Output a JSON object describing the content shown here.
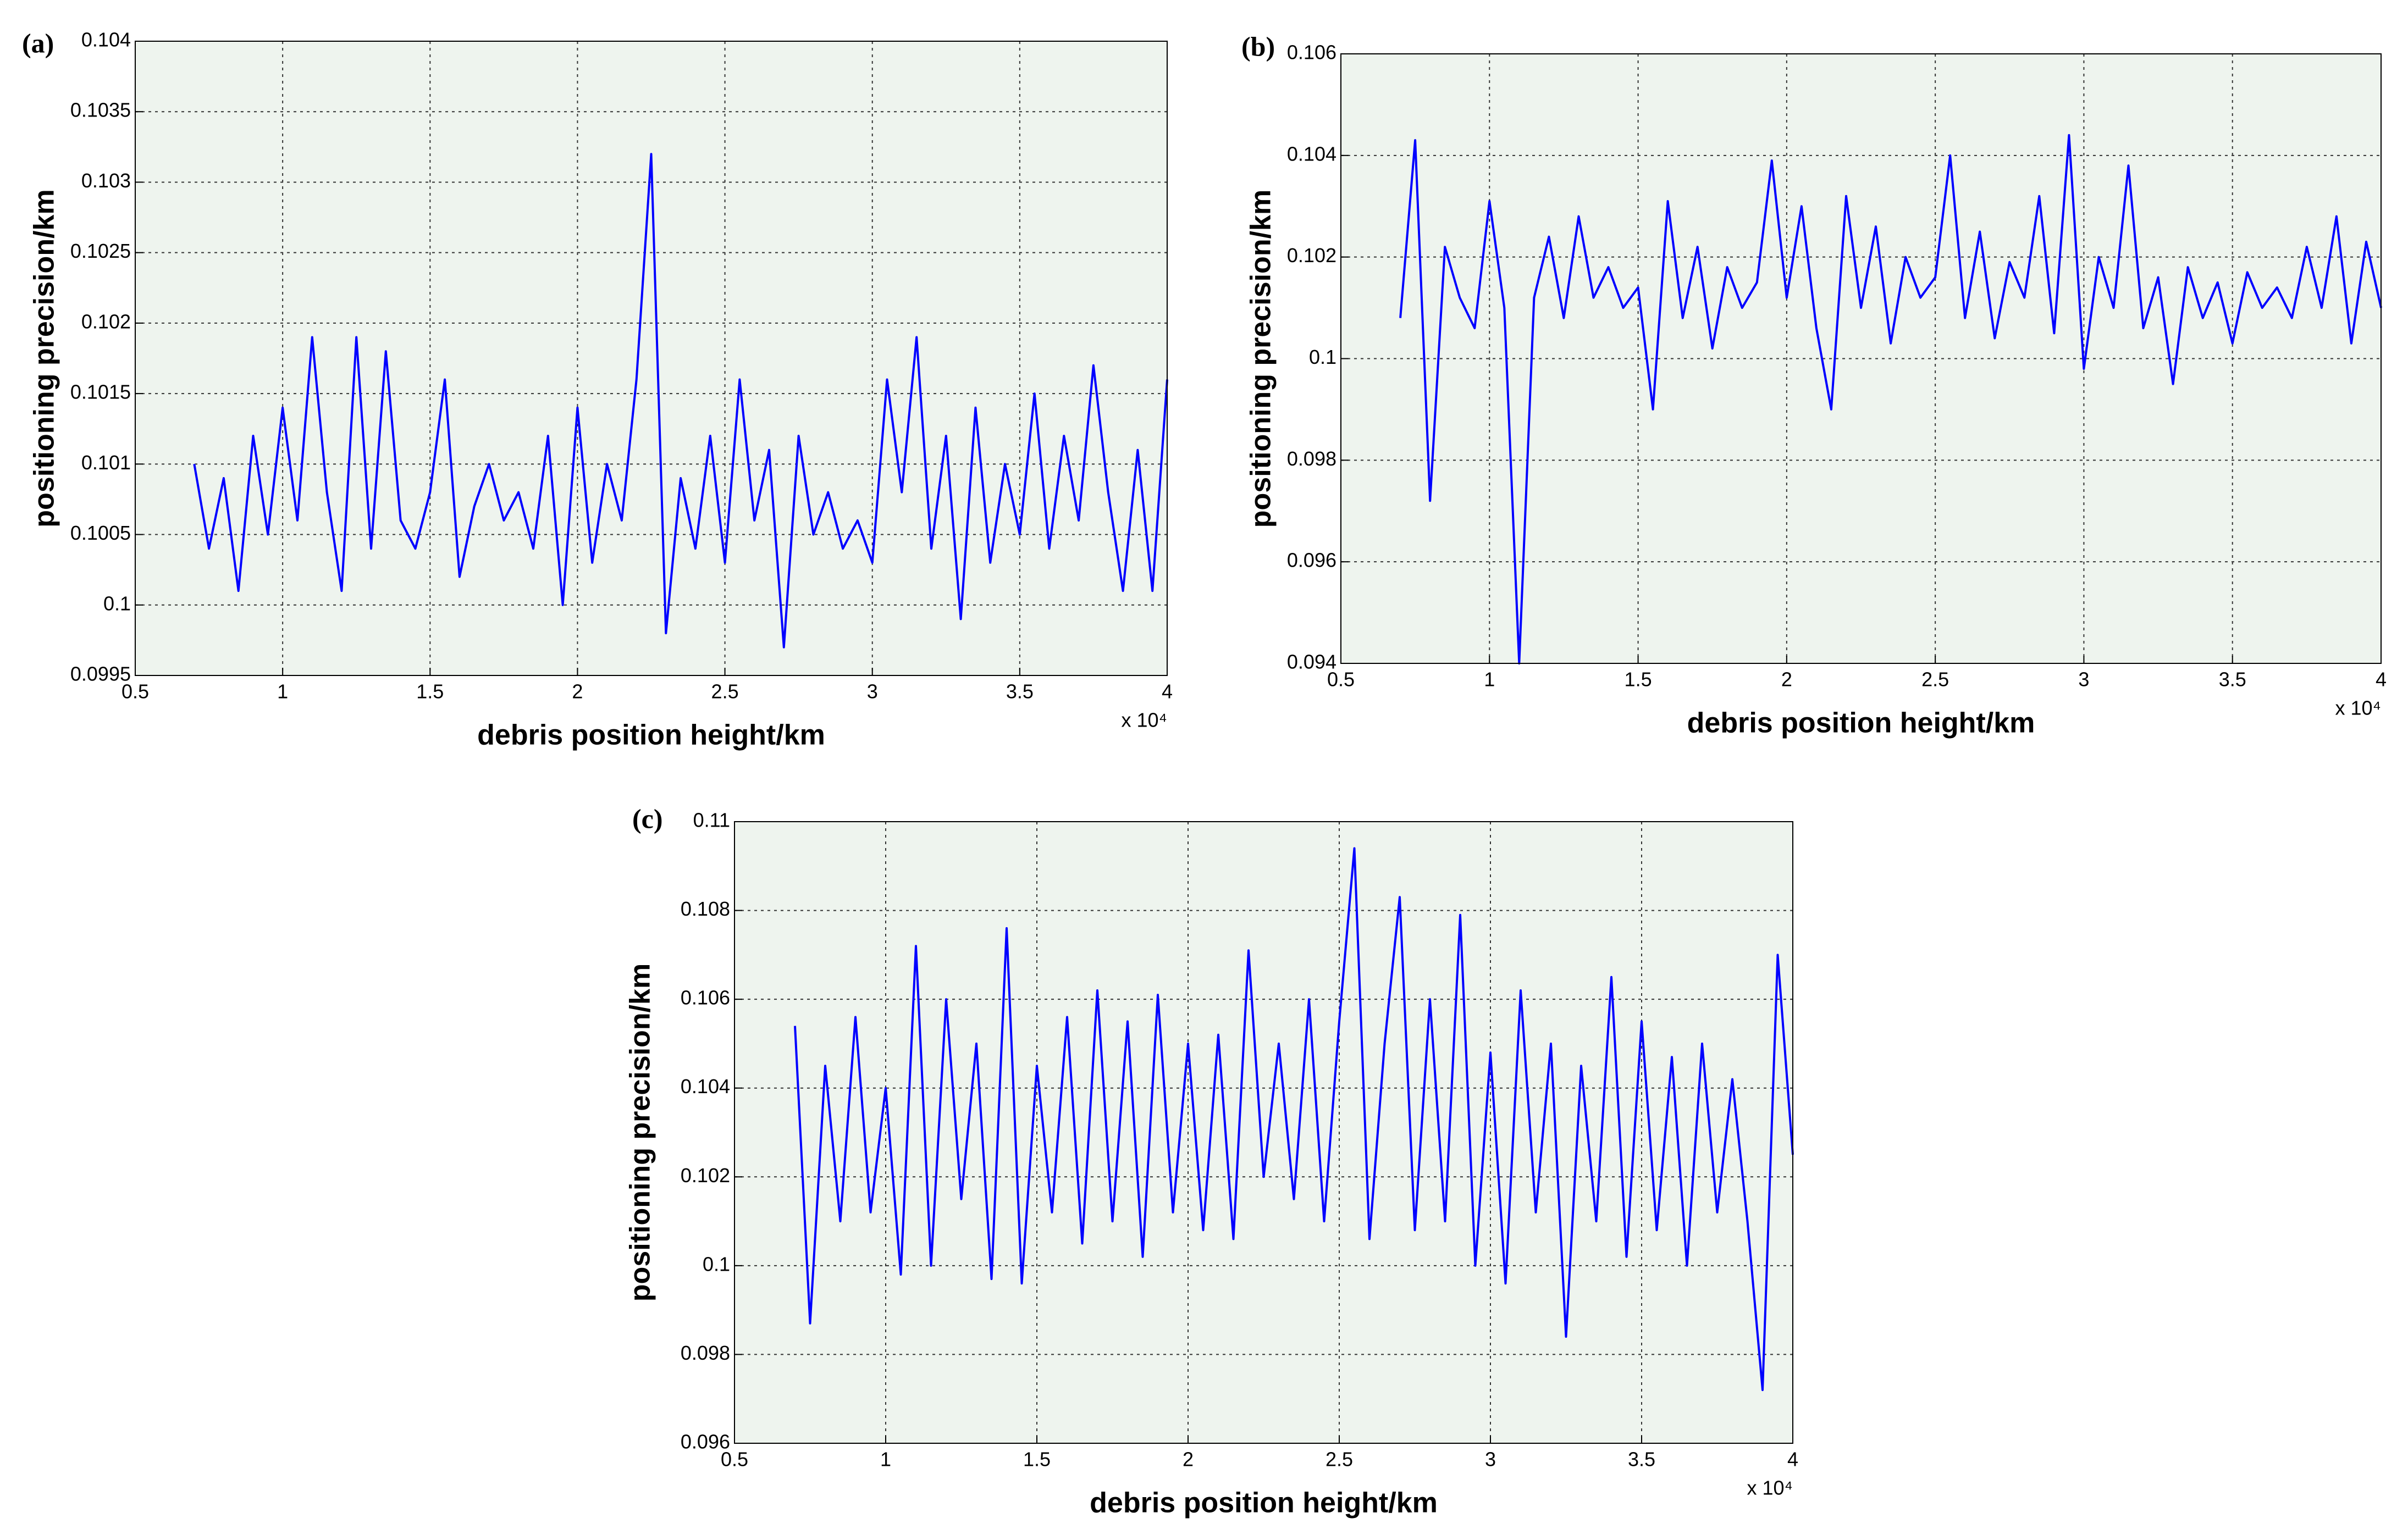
{
  "chart_data": [
    {
      "type": "line",
      "label": "(a)",
      "xlabel": "debris position height/km",
      "ylabel": "positioning precision/km",
      "x_scale_label": "x 10⁴",
      "color": "#0000ff",
      "background": "#eef4ee",
      "grid": true,
      "x": [
        0.7,
        0.75,
        0.8,
        0.85,
        0.9,
        0.95,
        1.0,
        1.05,
        1.1,
        1.15,
        1.2,
        1.25,
        1.3,
        1.35,
        1.4,
        1.45,
        1.5,
        1.55,
        1.6,
        1.65,
        1.7,
        1.75,
        1.8,
        1.85,
        1.9,
        1.95,
        2.0,
        2.05,
        2.1,
        2.15,
        2.2,
        2.25,
        2.3,
        2.35,
        2.4,
        2.45,
        2.5,
        2.55,
        2.6,
        2.65,
        2.7,
        2.75,
        2.8,
        2.85,
        2.9,
        2.95,
        3.0,
        3.05,
        3.1,
        3.15,
        3.2,
        3.25,
        3.3,
        3.35,
        3.4,
        3.45,
        3.5,
        3.55,
        3.6,
        3.65,
        3.7,
        3.75,
        3.8,
        3.85,
        3.9,
        3.95,
        4.0
      ],
      "values": [
        0.101,
        0.1004,
        0.1009,
        0.1001,
        0.1012,
        0.1005,
        0.1014,
        0.1006,
        0.1019,
        0.1008,
        0.1001,
        0.1019,
        0.1004,
        0.1018,
        0.1006,
        0.1004,
        0.1008,
        0.1016,
        0.1002,
        0.1007,
        0.101,
        0.1006,
        0.1008,
        0.1004,
        0.1012,
        0.1,
        0.1014,
        0.1003,
        0.101,
        0.1006,
        0.1016,
        0.1032,
        0.0998,
        0.1009,
        0.1004,
        0.1012,
        0.1003,
        0.1016,
        0.1006,
        0.1011,
        0.0997,
        0.1012,
        0.1005,
        0.1008,
        0.1004,
        0.1006,
        0.1003,
        0.1016,
        0.1008,
        0.1019,
        0.1004,
        0.1012,
        0.0999,
        0.1014,
        0.1003,
        0.101,
        0.1005,
        0.1015,
        0.1004,
        0.1012,
        0.1006,
        0.1017,
        0.1008,
        0.1001,
        0.1011,
        0.1001,
        0.1016
      ],
      "xlim": [
        0.5,
        4
      ],
      "xticks": [
        0.5,
        1,
        1.5,
        2,
        2.5,
        3,
        3.5,
        4
      ],
      "ylim": [
        0.0995,
        0.104
      ],
      "yticks": [
        0.0995,
        0.1,
        0.1005,
        0.101,
        0.1015,
        0.102,
        0.1025,
        0.103,
        0.1035,
        0.104
      ]
    },
    {
      "type": "line",
      "label": "(b)",
      "xlabel": "debris position height/km",
      "ylabel": "positioning precision/km",
      "x_scale_label": "x 10⁴",
      "color": "#0000ff",
      "background": "#eef4ee",
      "grid": true,
      "x": [
        0.7,
        0.75,
        0.8,
        0.85,
        0.9,
        0.95,
        1.0,
        1.05,
        1.1,
        1.15,
        1.2,
        1.25,
        1.3,
        1.35,
        1.4,
        1.45,
        1.5,
        1.55,
        1.6,
        1.65,
        1.7,
        1.75,
        1.8,
        1.85,
        1.9,
        1.95,
        2.0,
        2.05,
        2.1,
        2.15,
        2.2,
        2.25,
        2.3,
        2.35,
        2.4,
        2.45,
        2.5,
        2.55,
        2.6,
        2.65,
        2.7,
        2.75,
        2.8,
        2.85,
        2.9,
        2.95,
        3.0,
        3.05,
        3.1,
        3.15,
        3.2,
        3.25,
        3.3,
        3.35,
        3.4,
        3.45,
        3.5,
        3.55,
        3.6,
        3.65,
        3.7,
        3.75,
        3.8,
        3.85,
        3.9,
        3.95,
        4.0
      ],
      "values": [
        0.1008,
        0.1043,
        0.0972,
        0.1022,
        0.1012,
        0.1006,
        0.1031,
        0.101,
        0.094,
        0.1012,
        0.1024,
        0.1008,
        0.1028,
        0.1012,
        0.1018,
        0.101,
        0.1014,
        0.099,
        0.1031,
        0.1008,
        0.1022,
        0.1002,
        0.1018,
        0.101,
        0.1015,
        0.1039,
        0.1012,
        0.103,
        0.1006,
        0.099,
        0.1032,
        0.101,
        0.1026,
        0.1003,
        0.102,
        0.1012,
        0.1016,
        0.104,
        0.1008,
        0.1025,
        0.1004,
        0.1019,
        0.1012,
        0.1032,
        0.1005,
        0.1044,
        0.0998,
        0.102,
        0.101,
        0.1038,
        0.1006,
        0.1016,
        0.0995,
        0.1018,
        0.1008,
        0.1015,
        0.1003,
        0.1017,
        0.101,
        0.1014,
        0.1008,
        0.1022,
        0.101,
        0.1028,
        0.1003,
        0.1023,
        0.101
      ],
      "xlim": [
        0.5,
        4
      ],
      "xticks": [
        0.5,
        1,
        1.5,
        2,
        2.5,
        3,
        3.5,
        4
      ],
      "ylim": [
        0.094,
        0.106
      ],
      "yticks": [
        0.094,
        0.096,
        0.098,
        0.1,
        0.102,
        0.104,
        0.106
      ]
    },
    {
      "type": "line",
      "label": "(c)",
      "xlabel": "debris position height/km",
      "ylabel": "positioning precision/km",
      "x_scale_label": "x 10⁴",
      "color": "#0000ff",
      "background": "#eef4ee",
      "grid": true,
      "x": [
        0.7,
        0.75,
        0.8,
        0.85,
        0.9,
        0.95,
        1.0,
        1.05,
        1.1,
        1.15,
        1.2,
        1.25,
        1.3,
        1.35,
        1.4,
        1.45,
        1.5,
        1.55,
        1.6,
        1.65,
        1.7,
        1.75,
        1.8,
        1.85,
        1.9,
        1.95,
        2.0,
        2.05,
        2.1,
        2.15,
        2.2,
        2.25,
        2.3,
        2.35,
        2.4,
        2.45,
        2.5,
        2.55,
        2.6,
        2.65,
        2.7,
        2.75,
        2.8,
        2.85,
        2.9,
        2.95,
        3.0,
        3.05,
        3.1,
        3.15,
        3.2,
        3.25,
        3.3,
        3.35,
        3.4,
        3.45,
        3.5,
        3.55,
        3.6,
        3.65,
        3.7,
        3.75,
        3.8,
        3.85,
        3.9,
        3.95,
        4.0
      ],
      "values": [
        0.1054,
        0.0987,
        0.1045,
        0.101,
        0.1056,
        0.1012,
        0.104,
        0.0998,
        0.1072,
        0.1,
        0.106,
        0.1015,
        0.105,
        0.0997,
        0.1076,
        0.0996,
        0.1045,
        0.1012,
        0.1056,
        0.1005,
        0.1062,
        0.101,
        0.1055,
        0.1002,
        0.1061,
        0.1012,
        0.105,
        0.1008,
        0.1052,
        0.1006,
        0.1071,
        0.102,
        0.105,
        0.1015,
        0.106,
        0.101,
        0.1055,
        0.1094,
        0.1006,
        0.105,
        0.1083,
        0.1008,
        0.106,
        0.101,
        0.1079,
        0.1,
        0.1048,
        0.0996,
        0.1062,
        0.1012,
        0.105,
        0.0984,
        0.1045,
        0.101,
        0.1065,
        0.1002,
        0.1055,
        0.1008,
        0.1047,
        0.1,
        0.105,
        0.1012,
        0.1042,
        0.101,
        0.0972,
        0.107,
        0.1025
      ],
      "xlim": [
        0.5,
        4
      ],
      "xticks": [
        0.5,
        1,
        1.5,
        2,
        2.5,
        3,
        3.5,
        4
      ],
      "ylim": [
        0.096,
        0.11
      ],
      "yticks": [
        0.096,
        0.098,
        0.1,
        0.102,
        0.104,
        0.106,
        0.108,
        0.11
      ]
    }
  ]
}
